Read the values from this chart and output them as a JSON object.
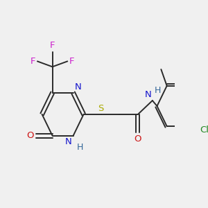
{
  "bg_color": "#f0f0f0",
  "bond_color": "#2a2a2a",
  "bond_width": 1.4,
  "figsize": [
    3.0,
    3.0
  ],
  "dpi": 100,
  "colors": {
    "C": "#2a2a2a",
    "N": "#1515cc",
    "O": "#cc1515",
    "S": "#aaaa00",
    "F": "#cc22cc",
    "Cl": "#228822",
    "H": "#336699"
  }
}
